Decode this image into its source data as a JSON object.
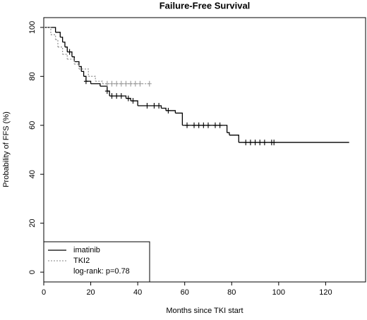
{
  "chart_data": {
    "type": "step",
    "title": "Failure-Free Survival",
    "x_label": "Months since TKI start",
    "y_label": "Probability of FFS (%)",
    "annotation": "log-rank: p=0.78",
    "legend_position": "lower left",
    "xlim": [
      0,
      137
    ],
    "ylim": [
      -4,
      104
    ],
    "xticks": [
      0,
      20,
      40,
      60,
      80,
      100,
      120
    ],
    "yticks": [
      0,
      20,
      40,
      60,
      80,
      100
    ],
    "series": [
      {
        "name": "imatinib",
        "color": "#000000",
        "dash": "solid",
        "x": [
          0,
          5,
          7,
          8,
          9,
          10,
          12,
          13,
          15,
          16,
          17,
          18,
          20,
          24,
          27,
          28,
          35,
          37,
          40,
          50,
          52,
          56,
          59,
          78,
          79,
          83,
          130
        ],
        "values": [
          100,
          98,
          96,
          94,
          92,
          90,
          88,
          86,
          84,
          82,
          80,
          78,
          77,
          76,
          74,
          72,
          71,
          70,
          68,
          67,
          66,
          65,
          60,
          57,
          56,
          53,
          53
        ],
        "censored_x": [
          11,
          18,
          27,
          29,
          31,
          33,
          36,
          38,
          44,
          47,
          49,
          53,
          61,
          64,
          66,
          68,
          70,
          73,
          75,
          86,
          88,
          90,
          92,
          94,
          97,
          98
        ],
        "censored_values": [
          90,
          78,
          74,
          72,
          72,
          72,
          71,
          70,
          68,
          68,
          68,
          66,
          60,
          60,
          60,
          60,
          60,
          60,
          60,
          53,
          53,
          53,
          53,
          53,
          53,
          53
        ]
      },
      {
        "name": "TKI2",
        "color": "#9a9a9a",
        "dash": "dotted",
        "x": [
          0,
          3,
          5,
          6,
          8,
          10,
          13,
          15,
          19,
          22,
          25,
          45
        ],
        "values": [
          100,
          97,
          95,
          92,
          89,
          87,
          85,
          83,
          80,
          78,
          77,
          77
        ],
        "censored_x": [
          27,
          29,
          31,
          33,
          35,
          37,
          39,
          41,
          45
        ],
        "censored_values": [
          77,
          77,
          77,
          77,
          77,
          77,
          77,
          77,
          77
        ]
      }
    ]
  }
}
